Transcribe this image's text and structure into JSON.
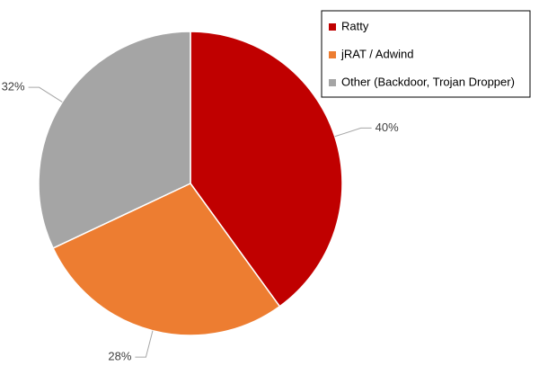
{
  "chart_data": {
    "type": "pie",
    "categories": [
      "Ratty",
      "jRAT / Adwind",
      "Other (Backdoor, Trojan Dropper)"
    ],
    "values": [
      40,
      28,
      32
    ],
    "value_labels": [
      "40%",
      "28%",
      "32%"
    ],
    "colors": [
      "#c00000",
      "#ed7d31",
      "#a5a5a5"
    ],
    "legend": "top-right"
  }
}
